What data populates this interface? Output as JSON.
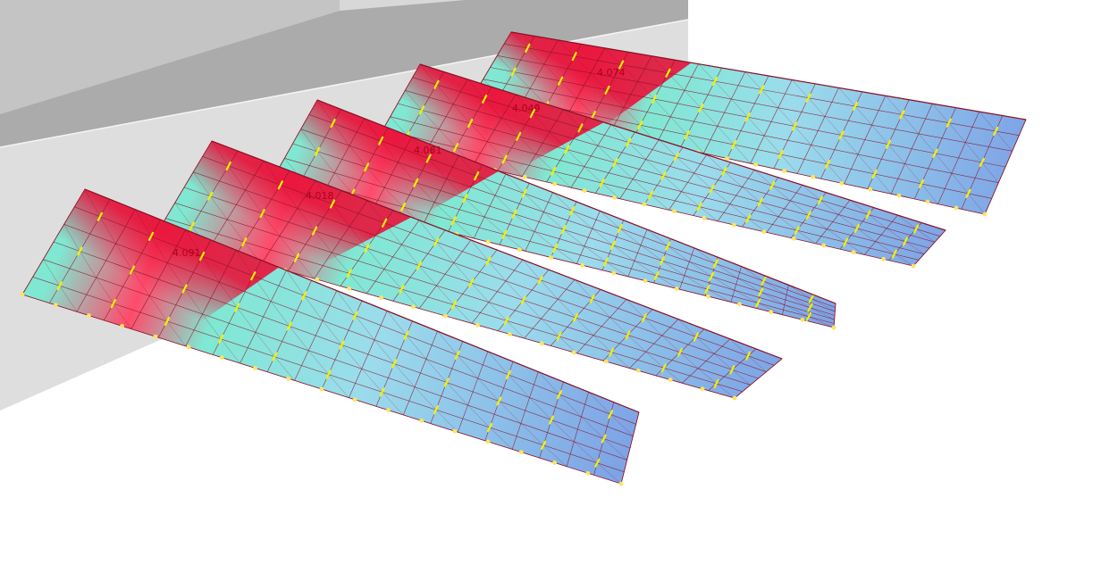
{
  "scene": {
    "type": "fe-result-3d-view",
    "colors": {
      "background": "#ffffff",
      "wall_light": "#e2e2e2",
      "wall_mid": "#d0d0d0",
      "wall_dark": "#b7b7b7",
      "mesh_line": "#8a1024",
      "contour_high": "#e8123a",
      "contour_mid": "#7fe8d2",
      "contour_low": "#7ea4e6",
      "arrow": "#f4f000",
      "support": "#ffe45c"
    },
    "ridges": [
      {
        "label": "4.091"
      },
      {
        "label": "4.018"
      },
      {
        "label": "4.061"
      },
      {
        "label": "4.049"
      },
      {
        "label": "4.074"
      }
    ]
  }
}
